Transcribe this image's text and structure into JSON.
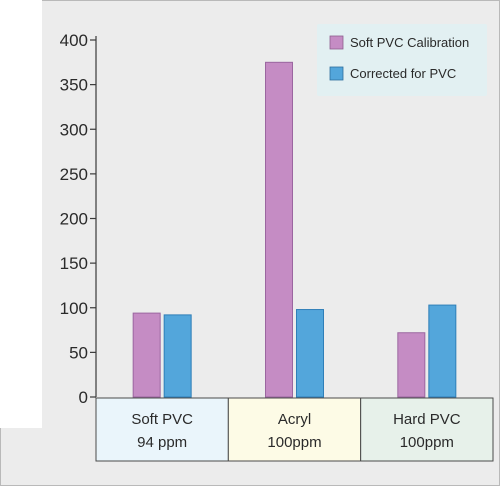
{
  "chart_data": {
    "type": "bar",
    "categories": [
      {
        "name": "Soft PVC",
        "sub": "94 ppm",
        "bg": "#eaf5fb"
      },
      {
        "name": "Acryl",
        "sub": "100ppm",
        "bg": "#fdfbe6"
      },
      {
        "name": "Hard PVC",
        "sub": "100ppm",
        "bg": "#e7f1ea"
      }
    ],
    "series": [
      {
        "name": "Soft PVC Calibration",
        "color": "#c58cc4",
        "values": [
          94,
          375,
          72
        ]
      },
      {
        "name": "Corrected for PVC",
        "color": "#53a6db",
        "values": [
          92,
          98,
          103
        ]
      }
    ],
    "ylim": [
      0,
      400
    ],
    "yticks": [
      "0",
      "50",
      "100",
      "150",
      "200",
      "250",
      "300",
      "350",
      "400"
    ],
    "legend_position": "top-right",
    "grid": false
  }
}
